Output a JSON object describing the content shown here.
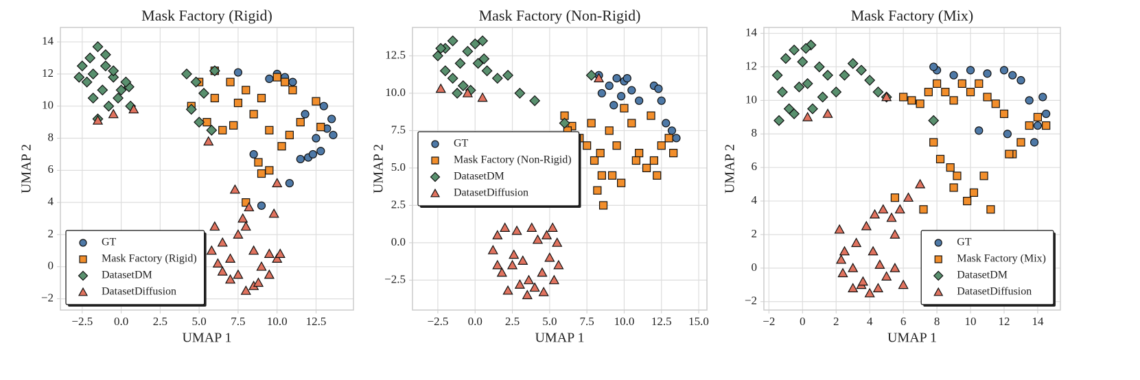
{
  "chart_data": [
    {
      "type": "scatter",
      "title": "Mask Factory (Rigid)",
      "xlabel": "UMAP 1",
      "ylabel": "UMAP 2",
      "xlim": [
        -3.9,
        14.9
      ],
      "ylim": [
        -2.7,
        14.9
      ],
      "xticks": [
        {
          "value": -2.5,
          "label": "−2.5"
        },
        {
          "value": 0,
          "label": "0.0"
        },
        2.5,
        {
          "value": 5,
          "label": "5.0"
        },
        7.5,
        {
          "value": 10,
          "label": "10.0"
        },
        12.5
      ],
      "yticks": [
        {
          "value": -2,
          "label": "−2"
        },
        0,
        2,
        4,
        6,
        8,
        10,
        12,
        14
      ],
      "grid": true,
      "legend": "lower left",
      "series": [
        {
          "name": "GT",
          "color": "#4e79a7",
          "marker": "circle",
          "x": [
            12.5,
            13.2,
            13.5,
            12.8,
            12.0,
            11.5,
            13.0,
            10.0,
            10.5,
            11.0,
            9.5,
            10.8,
            9.0,
            8.5,
            11.8,
            12.3,
            13.6,
            7.5
          ],
          "values": [
            8.0,
            8.6,
            9.2,
            7.2,
            6.8,
            6.7,
            10.0,
            12.0,
            11.8,
            11.5,
            11.7,
            5.2,
            3.8,
            7.0,
            9.5,
            7.0,
            8.2,
            12.1
          ]
        },
        {
          "name": "Mask Factory (Rigid)",
          "color": "#f28e2b",
          "marker": "square",
          "x": [
            5.0,
            6.0,
            7.0,
            8.0,
            9.0,
            10.0,
            11.0,
            4.5,
            5.5,
            6.5,
            7.5,
            8.5,
            9.5,
            10.5,
            11.5,
            12.5,
            8.8,
            9.0,
            10.3,
            10.8,
            6.0,
            7.2,
            12.8,
            9.5,
            8.0
          ],
          "values": [
            11.5,
            12.2,
            11.5,
            11.0,
            10.5,
            11.8,
            11.0,
            10.0,
            9.0,
            8.5,
            10.2,
            9.5,
            8.5,
            11.5,
            9.0,
            10.3,
            6.5,
            5.8,
            7.5,
            8.2,
            10.5,
            8.8,
            8.7,
            6.0,
            4.0
          ]
        },
        {
          "name": "DatasetDM",
          "color": "#59906e",
          "marker": "diamond",
          "x": [
            -2.5,
            -2,
            -1.5,
            -1,
            -0.5,
            0,
            0.5,
            -2.2,
            -1.8,
            -1.2,
            -0.8,
            -0.2,
            0.6,
            -2.7,
            -1.5,
            -0.5,
            0.3,
            4.2,
            4.8,
            5.3,
            5.8,
            4.5,
            5.0,
            6.0,
            -1.8,
            -1.0
          ],
          "values": [
            12.5,
            13.0,
            13.7,
            12.5,
            11.8,
            11.0,
            11.2,
            11.5,
            10.5,
            11.0,
            10.0,
            10.5,
            10.0,
            11.8,
            9.2,
            12.2,
            11.5,
            12.0,
            11.5,
            10.8,
            8.5,
            9.8,
            9.0,
            12.2,
            12.0,
            13.2
          ]
        },
        {
          "name": "DatasetDiffusion",
          "color": "#e1735f",
          "marker": "triangle",
          "x": [
            6,
            6.5,
            7,
            7.5,
            8,
            8.5,
            9,
            9.5,
            10,
            7.8,
            8.2,
            8.8,
            6.2,
            7.0,
            6.5,
            7.5,
            8.5,
            9.5,
            10.2,
            7.3,
            8.0,
            9.8,
            -1.5,
            -0.5,
            0.8,
            5.6,
            5.8,
            10.0
          ],
          "values": [
            2.5,
            1.5,
            0.5,
            -0.5,
            -1.5,
            -1.2,
            0,
            0.8,
            0.5,
            3.0,
            3.7,
            -1.0,
            0.2,
            -0.8,
            -0.3,
            2.0,
            1.0,
            -0.5,
            0.8,
            4.8,
            2.5,
            3.3,
            9.1,
            9.5,
            9.8,
            7.8,
            1.0,
            5.2
          ]
        }
      ]
    },
    {
      "type": "scatter",
      "title": "Mask Factory (Non-Rigid)",
      "xlabel": "UMAP 1",
      "ylabel": "UMAP 2",
      "xlim": [
        -4.2,
        15.55
      ],
      "ylim": [
        -4.5,
        14.4
      ],
      "xticks": [
        {
          "value": -2.5,
          "label": "−2.5"
        },
        {
          "value": 0,
          "label": "0.0"
        },
        2.5,
        {
          "value": 5,
          "label": "5.0"
        },
        7.5,
        {
          "value": 10,
          "label": "10.0"
        },
        12.5,
        {
          "value": 15,
          "label": "15.0"
        }
      ],
      "yticks": [
        {
          "value": -2.5,
          "label": "−2.5"
        },
        {
          "value": 0,
          "label": "0.0"
        },
        2.5,
        {
          "value": 5,
          "label": "5.0"
        },
        7.5,
        {
          "value": 10,
          "label": "10.0"
        },
        12.5
      ],
      "grid": true,
      "legend": "center left",
      "series": [
        {
          "name": "GT",
          "color": "#4e79a7",
          "marker": "circle",
          "x": [
            8.5,
            9,
            9.5,
            10,
            10.5,
            11,
            12,
            12.5,
            12.8,
            13.2,
            13.5,
            9.8,
            10.2,
            12.3,
            8.3,
            9.3
          ],
          "values": [
            10,
            10.5,
            11,
            10.8,
            10.2,
            9.5,
            10.5,
            9.5,
            8.0,
            7.5,
            7.0,
            9.8,
            11.0,
            10.3,
            11.2,
            9.2
          ]
        },
        {
          "name": "Mask Factory (Non-Rigid)",
          "color": "#f28e2b",
          "marker": "square",
          "x": [
            6,
            6.5,
            7,
            7.5,
            8,
            8.5,
            9,
            9.5,
            10,
            10.5,
            11,
            11.5,
            12,
            12.5,
            13,
            13.3,
            8.2,
            8.6,
            9.2,
            10.8,
            11.8,
            12.2,
            7.8,
            9.8,
            8.4,
            6.2
          ],
          "values": [
            8.5,
            7.8,
            7,
            6.5,
            5.5,
            4.5,
            7.5,
            6.5,
            9.0,
            8.0,
            6.0,
            5.0,
            5.5,
            6.5,
            7.0,
            6.0,
            3.5,
            2.5,
            4.5,
            5.5,
            8.5,
            4.5,
            8.0,
            4.0,
            6.0,
            7.5
          ]
        },
        {
          "name": "DatasetDM",
          "color": "#59906e",
          "marker": "diamond",
          "x": [
            -2.5,
            -2,
            -1.5,
            -1,
            -0.5,
            0,
            0.5,
            -2,
            -1.5,
            -0.8,
            0.2,
            0.8,
            -1.2,
            -0.3,
            1.5,
            2.2,
            3.0,
            4.0,
            6.0,
            7.8,
            -2.3,
            0.6
          ],
          "values": [
            12.5,
            13,
            13.5,
            12,
            12.8,
            13.3,
            13.5,
            11.5,
            11,
            10.5,
            12,
            11.5,
            10,
            10.2,
            11,
            11.2,
            10,
            9.5,
            8,
            11.2,
            13,
            12.3
          ]
        },
        {
          "name": "DatasetDiffusion",
          "color": "#e1735f",
          "marker": "triangle",
          "x": [
            -2.3,
            -0.5,
            0.5,
            1.2,
            1.5,
            2,
            2.5,
            3,
            3.5,
            4,
            4.5,
            5,
            5.5,
            1.8,
            2.8,
            3.8,
            4.8,
            2.2,
            3.2,
            4.2,
            5.3,
            1.5,
            3.6,
            4.6,
            2.6,
            5.6,
            5.2,
            8.3
          ],
          "values": [
            10.3,
            10.0,
            9.7,
            -0.5,
            0.5,
            1.0,
            -1.5,
            -2.8,
            -3.5,
            -3.0,
            -2.0,
            -1.0,
            0.0,
            -2.0,
            0.8,
            1.0,
            0.5,
            -3.2,
            -1.2,
            0.2,
            -2.5,
            -1.5,
            -2.5,
            -3.3,
            -0.8,
            -1.5,
            1.0,
            11.0
          ]
        }
      ]
    },
    {
      "type": "scatter",
      "title": "Mask Factory (Mix)",
      "xlabel": "UMAP 1",
      "ylabel": "UMAP 2",
      "xlim": [
        -2.3,
        15.35
      ],
      "ylim": [
        -2.5,
        14.35
      ],
      "xticks": [
        {
          "value": -2,
          "label": "−2"
        },
        0,
        2,
        4,
        6,
        8,
        10,
        12,
        14
      ],
      "yticks": [
        {
          "value": -2,
          "label": "−2"
        },
        0,
        2,
        4,
        6,
        8,
        10,
        12,
        14
      ],
      "grid": true,
      "legend": "lower right",
      "series": [
        {
          "name": "GT",
          "color": "#4e79a7",
          "marker": "circle",
          "x": [
            8,
            9,
            10,
            11,
            12,
            12.5,
            13,
            13.5,
            14,
            14.5,
            13.8,
            12.2,
            9.5,
            10.5,
            14.3,
            7.8
          ],
          "values": [
            11.8,
            11.5,
            11.8,
            11.6,
            11.8,
            11.5,
            11.2,
            10.0,
            8.5,
            9.2,
            7.5,
            8.0,
            11.0,
            8.2,
            10.2,
            12.0
          ]
        },
        {
          "name": "Mask Factory (Mix)",
          "color": "#f28e2b",
          "marker": "square",
          "x": [
            6,
            6.5,
            7,
            7.5,
            8,
            8.5,
            9,
            9.5,
            10,
            10.5,
            11,
            11.5,
            12,
            12.5,
            13,
            13.5,
            14,
            14.5,
            8.2,
            9.2,
            10.2,
            11.2,
            7.8,
            8.8,
            9.8,
            10.8,
            12.3,
            9.0,
            7.2,
            5.5
          ],
          "values": [
            10.2,
            10.0,
            9.8,
            10.5,
            11.0,
            10.5,
            10.0,
            11.0,
            10.5,
            11.0,
            10.2,
            9.8,
            9.2,
            6.8,
            7.5,
            8.5,
            9.0,
            8.5,
            6.5,
            5.5,
            4.5,
            3.5,
            7.5,
            6.0,
            4.0,
            5.5,
            6.8,
            4.8,
            3.5,
            4.2
          ]
        },
        {
          "name": "DatasetDM",
          "color": "#59906e",
          "marker": "diamond",
          "x": [
            -1.5,
            -1,
            -0.5,
            0,
            0.5,
            1,
            1.5,
            2,
            -1.2,
            -0.8,
            -0.2,
            0.3,
            1.2,
            -1.4,
            0.6,
            2.5,
            3,
            3.5,
            4,
            4.5,
            5,
            0.2,
            -0.5,
            7.8
          ],
          "values": [
            11.5,
            12.5,
            13,
            12.3,
            13.3,
            12,
            11.5,
            10.5,
            10.5,
            9.5,
            10.8,
            11,
            10.2,
            8.8,
            9.5,
            11.5,
            12.2,
            11.8,
            11.2,
            10.5,
            10.2,
            13.1,
            9.2,
            8.8
          ]
        },
        {
          "name": "DatasetDiffusion",
          "color": "#e1735f",
          "marker": "triangle",
          "x": [
            2.2,
            2.5,
            3,
            3.5,
            4,
            4.5,
            5,
            5.5,
            6,
            2.4,
            3.2,
            3.8,
            4.3,
            4.8,
            5.3,
            2.3,
            3.6,
            4.6,
            5.8,
            6.3,
            7,
            0.3,
            1.5,
            5,
            5.5,
            3.0,
            4.2
          ],
          "values": [
            2.3,
            1.0,
            0,
            -1.0,
            -1.5,
            -1.2,
            -0.5,
            0,
            -1,
            -0.3,
            1.5,
            2.5,
            3.2,
            3.5,
            3.0,
            0.5,
            -0.8,
            0.2,
            3.5,
            4.2,
            5.0,
            9.0,
            9.2,
            10.2,
            2.0,
            -1.2,
            1.0
          ]
        }
      ]
    }
  ]
}
